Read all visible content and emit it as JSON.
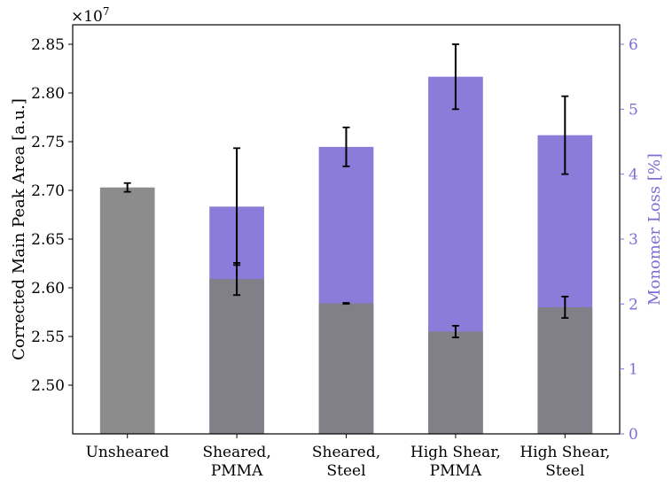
{
  "chart_data": {
    "type": "bar",
    "categories": [
      [
        "Unsheared"
      ],
      [
        "Sheared,",
        "PMMA"
      ],
      [
        "Sheared,",
        "Steel"
      ],
      [
        "High Shear,",
        "PMMA"
      ],
      [
        "High Shear,",
        "Steel"
      ]
    ],
    "left_axis": {
      "label": "Corrected Main Peak Area [a.u.]",
      "multiplier_label": "×10",
      "multiplier_exponent": "7",
      "ylim": [
        2.45,
        2.87
      ],
      "ticks": [
        2.5,
        2.55,
        2.6,
        2.65,
        2.7,
        2.75,
        2.8,
        2.85
      ],
      "tick_labels": [
        "2.50",
        "2.55",
        "2.60",
        "2.65",
        "2.70",
        "2.75",
        "2.80",
        "2.85"
      ],
      "color": "#000000"
    },
    "right_axis": {
      "label": "Monomer Loss [%]",
      "ylim": [
        0,
        6.3
      ],
      "ticks": [
        0,
        1,
        2,
        3,
        4,
        5,
        6
      ],
      "tick_labels": [
        "0",
        "1",
        "2",
        "3",
        "4",
        "5",
        "6"
      ],
      "color": "#7B6FD6"
    },
    "series": [
      {
        "axis": "right",
        "color": "#8a7cd8",
        "values": [
          0,
          3.5,
          4.42,
          5.5,
          4.6
        ],
        "errors": [
          0,
          0.9,
          0.3,
          0.5,
          0.6
        ]
      },
      {
        "axis": "left",
        "color": "#7f7f7f",
        "opacity": 0.9,
        "values": [
          2.703,
          2.609,
          2.584,
          2.555,
          2.58
        ],
        "errors": [
          0.0045,
          0.0165,
          0.0005,
          0.006,
          0.011
        ]
      }
    ],
    "grid": false,
    "legend": "none"
  }
}
